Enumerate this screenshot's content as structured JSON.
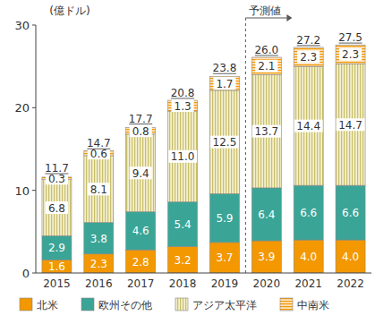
{
  "chart_data": {
    "type": "bar",
    "stacked": true,
    "data_labels": true,
    "grid": false,
    "legend": "bottom",
    "y_label": "(億ドル)",
    "annotation": "予測値",
    "forecast_start": "2020",
    "categories": [
      "2015",
      "2016",
      "2017",
      "2018",
      "2019",
      "2020",
      "2021",
      "2022"
    ],
    "ylim": [
      0,
      30
    ],
    "yticks": [
      0,
      10,
      20,
      30
    ],
    "series": [
      {
        "name": "北米",
        "color": "#f39800",
        "values": [
          1.6,
          2.3,
          2.8,
          3.2,
          3.7,
          3.9,
          4.0,
          4.0
        ],
        "value_labels": [
          "1.6",
          "2.3",
          "2.8",
          "3.2",
          "3.7",
          "3.9",
          "4.0",
          "4.0"
        ]
      },
      {
        "name": "欧州その他",
        "color": "#3aa596",
        "values": [
          2.9,
          3.8,
          4.6,
          5.4,
          5.9,
          6.4,
          6.6,
          6.6
        ],
        "value_labels": [
          "2.9",
          "3.8",
          "4.6",
          "5.4",
          "5.9",
          "6.4",
          "6.6",
          "6.6"
        ]
      },
      {
        "name": "アジア太平洋",
        "color": "#c9bf6a",
        "values": [
          6.8,
          8.1,
          9.4,
          11.0,
          12.5,
          13.7,
          14.4,
          14.7
        ],
        "value_labels": [
          "6.8",
          "8.1",
          "9.4",
          "11.0",
          "12.5",
          "13.7",
          "14.4",
          "14.7"
        ]
      },
      {
        "name": "中南米",
        "color": "#f39800",
        "values": [
          0.3,
          0.6,
          0.8,
          1.3,
          1.7,
          2.1,
          2.3,
          2.3
        ],
        "value_labels": [
          "0.3",
          "0.6",
          "0.8",
          "1.3",
          "1.7",
          "2.1",
          "2.3",
          "2.3"
        ]
      }
    ],
    "totals": [
      11.7,
      14.7,
      17.7,
      20.8,
      23.8,
      26.0,
      27.2,
      27.5
    ],
    "total_labels": [
      "11.7",
      "14.7",
      "17.7",
      "20.8",
      "23.8",
      "26.0",
      "27.2",
      "27.5"
    ]
  }
}
